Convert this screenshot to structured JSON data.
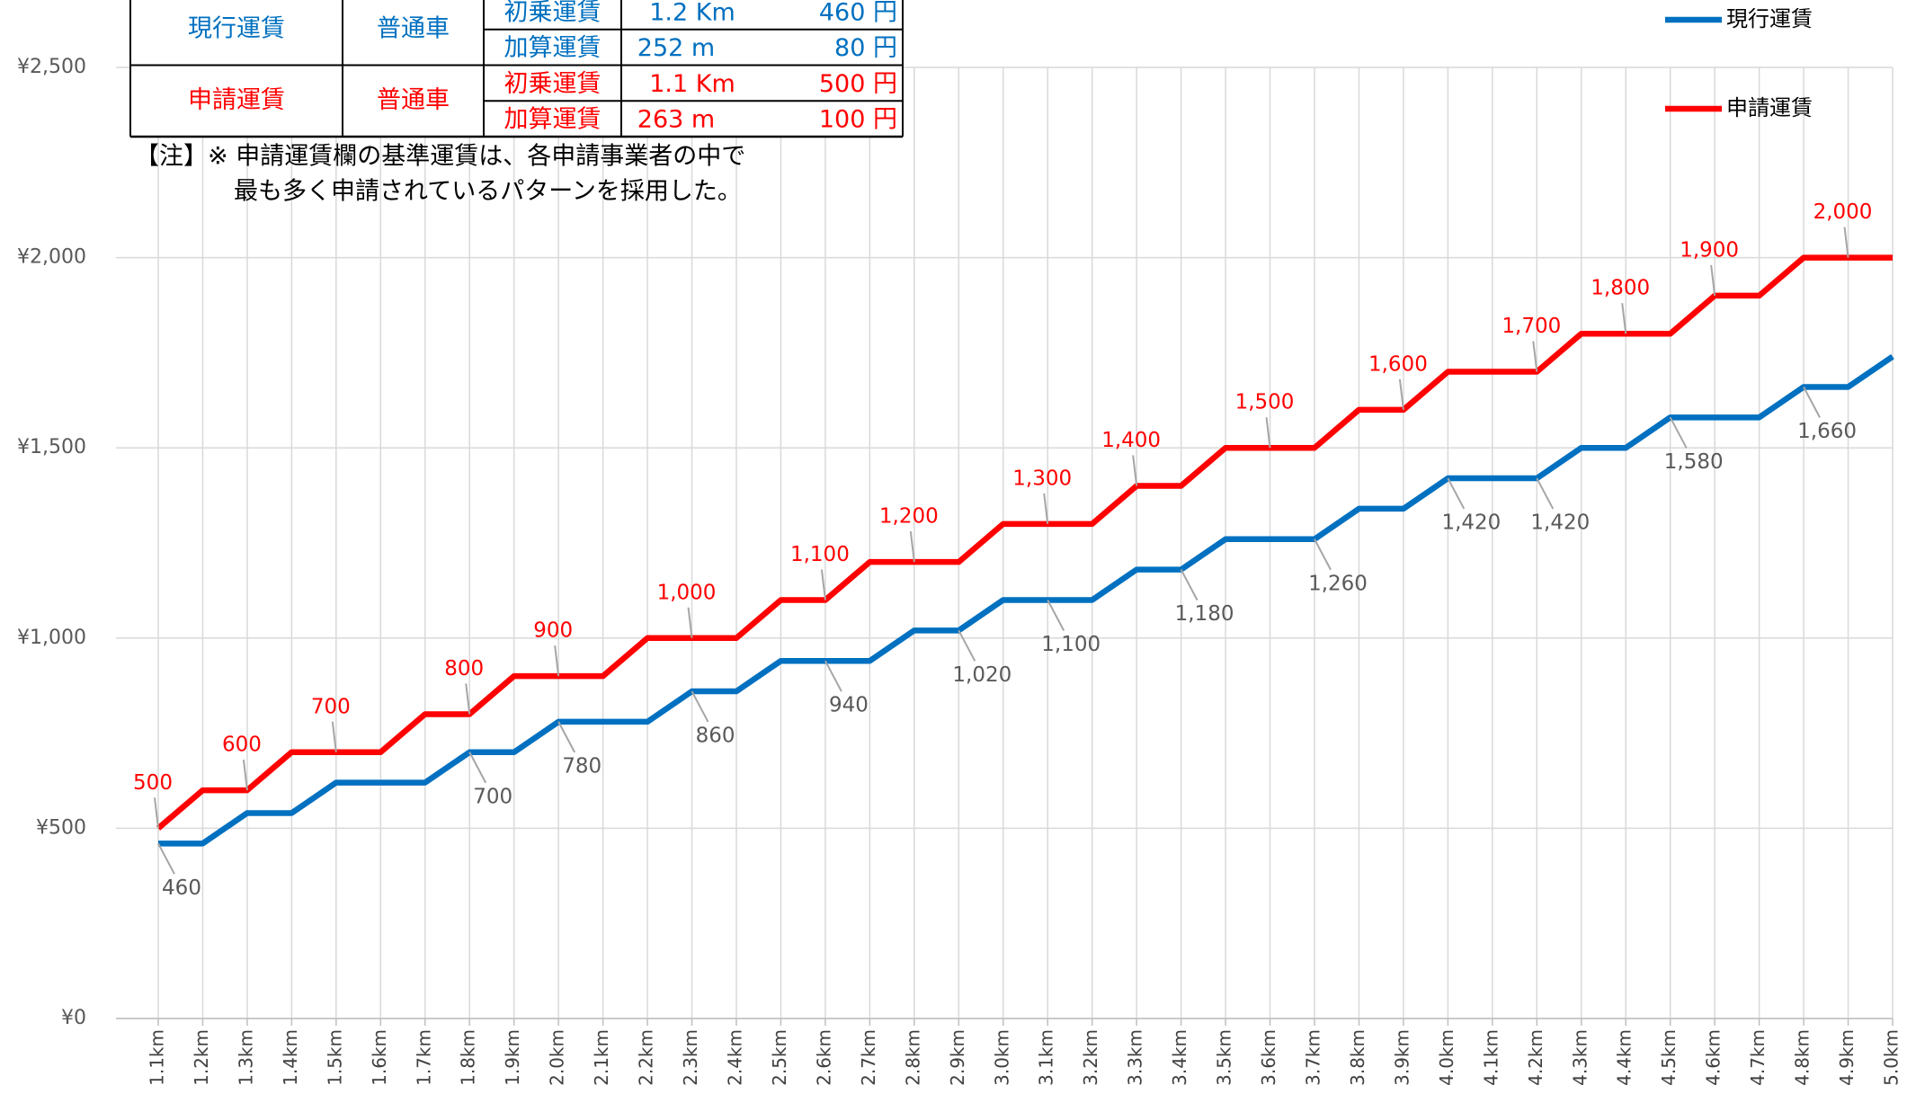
{
  "chart_data": {
    "type": "line",
    "categories": [
      "1.1km",
      "1.2km",
      "1.3km",
      "1.4km",
      "1.5km",
      "1.6km",
      "1.7km",
      "1.8km",
      "1.9km",
      "2.0km",
      "2.1km",
      "2.2km",
      "2.3km",
      "2.4km",
      "2.5km",
      "2.6km",
      "2.7km",
      "2.8km",
      "2.9km",
      "3.0km",
      "3.1km",
      "3.2km",
      "3.3km",
      "3.4km",
      "3.5km",
      "3.6km",
      "3.7km",
      "3.8km",
      "3.9km",
      "4.0km",
      "4.1km",
      "4.2km",
      "4.3km",
      "4.4km",
      "4.5km",
      "4.6km",
      "4.7km",
      "4.8km",
      "4.9km",
      "5.0km"
    ],
    "series": [
      {
        "name": "現行運賃",
        "color": "#0070c0",
        "values": [
          460,
          460,
          540,
          540,
          620,
          620,
          620,
          700,
          700,
          780,
          780,
          780,
          860,
          860,
          940,
          940,
          940,
          1020,
          1020,
          1100,
          1100,
          1100,
          1180,
          1180,
          1260,
          1260,
          1260,
          1340,
          1340,
          1420,
          1420,
          1420,
          1500,
          1500,
          1580,
          1580,
          1580,
          1660,
          1660,
          1740
        ],
        "value_labels": [
          "460",
          null,
          null,
          null,
          null,
          null,
          null,
          "700",
          null,
          "780",
          null,
          null,
          "860",
          null,
          null,
          "940",
          null,
          null,
          "1,020",
          null,
          "1,100",
          null,
          null,
          "1,180",
          null,
          null,
          "1,260",
          null,
          null,
          "1,420",
          null,
          "1,420",
          null,
          null,
          "1,580",
          null,
          null,
          "1,660",
          null,
          null
        ]
      },
      {
        "name": "申請運賃",
        "color": "#ff0000",
        "values": [
          500,
          600,
          600,
          700,
          700,
          700,
          800,
          800,
          900,
          900,
          900,
          1000,
          1000,
          1000,
          1100,
          1100,
          1200,
          1200,
          1200,
          1300,
          1300,
          1300,
          1400,
          1400,
          1500,
          1500,
          1500,
          1600,
          1600,
          1700,
          1700,
          1700,
          1800,
          1800,
          1800,
          1900,
          1900,
          2000,
          2000,
          2000
        ],
        "value_labels": [
          "500",
          null,
          "600",
          null,
          "700",
          null,
          null,
          "800",
          null,
          "900",
          null,
          null,
          "1,000",
          null,
          null,
          "1,100",
          null,
          "1,200",
          null,
          null,
          "1,300",
          null,
          "1,400",
          null,
          null,
          "1,500",
          null,
          null,
          "1,600",
          null,
          null,
          "1,700",
          null,
          "1,800",
          null,
          "1,900",
          null,
          null,
          "2,000",
          null
        ]
      }
    ],
    "ylim": [
      0,
      2500
    ],
    "yticks": [
      {
        "value": 0,
        "label": "¥0"
      },
      {
        "value": 500,
        "label": "¥500"
      },
      {
        "value": 1000,
        "label": "¥1,000"
      },
      {
        "value": 1500,
        "label": "¥1,500"
      },
      {
        "value": 2000,
        "label": "¥2,000"
      },
      {
        "value": 2500,
        "label": "¥2,500"
      }
    ],
    "grid": true,
    "legend": "top-right"
  },
  "table": {
    "rows": [
      [
        "現行運賃",
        "普通車",
        "初乗運賃",
        "1.2 Km",
        "460 円"
      ],
      [
        "加算運賃",
        "252 m",
        "80 円"
      ],
      [
        "申請運賃",
        "普通車",
        "初乗運賃",
        "1.1 Km",
        "500 円"
      ],
      [
        "加算運賃",
        "263 m",
        "100 円"
      ]
    ]
  },
  "note": [
    "【注】※ 申請運賃欄の基準運賃は、各申請事業者の中で",
    "最も多く申請されているパターンを採用した。"
  ]
}
